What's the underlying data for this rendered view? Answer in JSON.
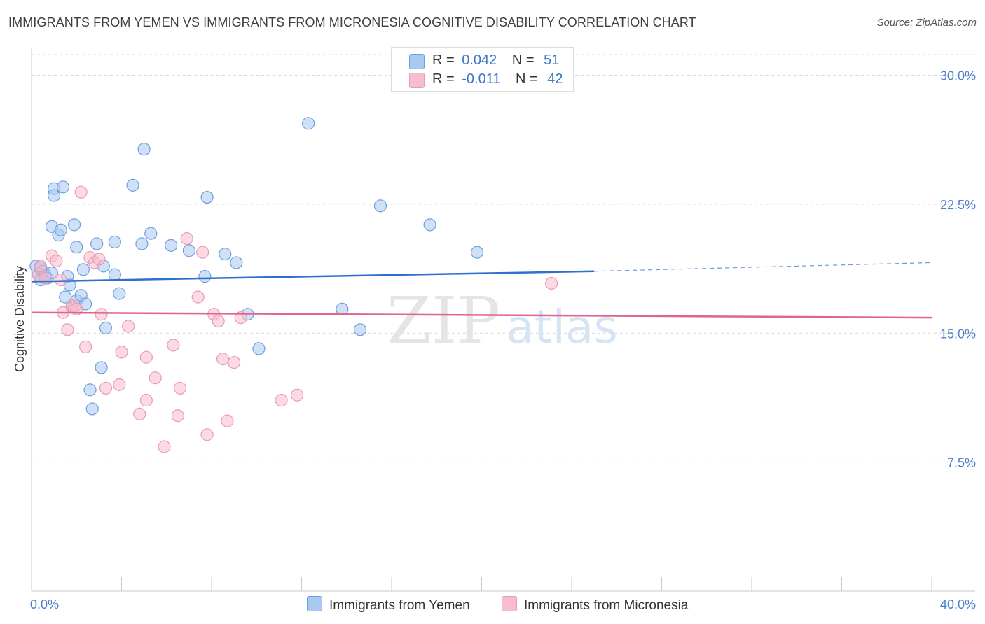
{
  "title": "IMMIGRANTS FROM YEMEN VS IMMIGRANTS FROM MICRONESIA COGNITIVE DISABILITY CORRELATION CHART",
  "source": "Source: ZipAtlas.com",
  "watermark": {
    "zip": "ZIP",
    "atlas": "atlas"
  },
  "legend": {
    "rows": [
      {
        "r_label": "R =",
        "r_value": "0.042",
        "n_label": "N =",
        "n_value": "51"
      },
      {
        "r_label": "R =",
        "r_value": "-0.011",
        "n_label": "N =",
        "n_value": "42"
      }
    ]
  },
  "bottom_legend": {
    "yemen": "Immigrants from Yemen",
    "micronesia": "Immigrants from Micronesia"
  },
  "colors": {
    "yemen_fill": "#a9c9f0",
    "yemen_stroke": "#6a9fe0",
    "yemen_line": "#2f6fcf",
    "micronesia_fill": "#f7bccd",
    "micronesia_stroke": "#eb9ab3",
    "micronesia_line": "#e0648c",
    "tick_text": "#4a7fcc"
  },
  "chart_data": {
    "type": "scatter",
    "title": "IMMIGRANTS FROM YEMEN VS IMMIGRANTS FROM MICRONESIA COGNITIVE DISABILITY CORRELATION CHART",
    "xlabel": "",
    "ylabel": "Cognitive Disability",
    "xlim": [
      0,
      40
    ],
    "ylim": [
      0,
      31.2
    ],
    "x_tick_labels": [
      "0.0%",
      "40.0%"
    ],
    "y_ticks": [
      7.5,
      15.0,
      22.5,
      30.0
    ],
    "y_tick_labels": [
      "7.5%",
      "15.0%",
      "22.5%",
      "30.0%"
    ],
    "grid": "horizontal dashed",
    "legend_position": "top-center",
    "series": [
      {
        "name": "Immigrants from Yemen",
        "points": [
          [
            0.2,
            18.9
          ],
          [
            0.3,
            18.4
          ],
          [
            0.4,
            18.1
          ],
          [
            0.4,
            18.8
          ],
          [
            0.5,
            18.6
          ],
          [
            0.6,
            18.4
          ],
          [
            0.7,
            18.2
          ],
          [
            0.9,
            21.2
          ],
          [
            0.9,
            18.5
          ],
          [
            1.0,
            23.4
          ],
          [
            1.0,
            23.0
          ],
          [
            1.2,
            20.7
          ],
          [
            1.3,
            21.0
          ],
          [
            1.4,
            23.5
          ],
          [
            1.5,
            17.1
          ],
          [
            1.6,
            18.3
          ],
          [
            1.7,
            17.8
          ],
          [
            1.8,
            16.5
          ],
          [
            1.9,
            21.3
          ],
          [
            2.0,
            20.0
          ],
          [
            2.0,
            16.9
          ],
          [
            2.2,
            17.2
          ],
          [
            2.3,
            18.7
          ],
          [
            2.4,
            16.7
          ],
          [
            2.6,
            11.7
          ],
          [
            2.7,
            10.6
          ],
          [
            2.9,
            20.2
          ],
          [
            3.1,
            13.0
          ],
          [
            3.2,
            18.9
          ],
          [
            3.3,
            15.3
          ],
          [
            3.7,
            18.4
          ],
          [
            3.7,
            20.3
          ],
          [
            3.9,
            17.3
          ],
          [
            4.5,
            23.6
          ],
          [
            4.9,
            20.2
          ],
          [
            5.0,
            25.7
          ],
          [
            5.3,
            20.8
          ],
          [
            6.2,
            20.1
          ],
          [
            7.0,
            19.8
          ],
          [
            7.8,
            22.9
          ],
          [
            7.7,
            18.3
          ],
          [
            8.6,
            19.6
          ],
          [
            9.1,
            19.1
          ],
          [
            9.6,
            16.1
          ],
          [
            10.1,
            14.1
          ],
          [
            12.3,
            27.2
          ],
          [
            13.8,
            16.4
          ],
          [
            14.6,
            15.2
          ],
          [
            15.5,
            22.4
          ],
          [
            17.7,
            21.3
          ],
          [
            19.8,
            19.7
          ]
        ]
      },
      {
        "name": "Immigrants from Micronesia",
        "points": [
          [
            0.3,
            18.4
          ],
          [
            0.4,
            18.9
          ],
          [
            0.6,
            18.2
          ],
          [
            0.9,
            19.5
          ],
          [
            1.1,
            19.2
          ],
          [
            1.3,
            18.1
          ],
          [
            1.4,
            16.2
          ],
          [
            1.6,
            15.2
          ],
          [
            1.8,
            16.6
          ],
          [
            1.9,
            16.5
          ],
          [
            2.0,
            16.4
          ],
          [
            2.2,
            23.2
          ],
          [
            2.4,
            14.2
          ],
          [
            2.6,
            19.4
          ],
          [
            2.8,
            19.1
          ],
          [
            3.0,
            19.3
          ],
          [
            3.1,
            16.1
          ],
          [
            3.3,
            11.8
          ],
          [
            3.9,
            12.0
          ],
          [
            4.0,
            13.9
          ],
          [
            4.3,
            15.4
          ],
          [
            4.8,
            10.3
          ],
          [
            5.1,
            13.6
          ],
          [
            5.1,
            11.1
          ],
          [
            5.5,
            12.4
          ],
          [
            5.9,
            8.4
          ],
          [
            6.3,
            14.3
          ],
          [
            6.5,
            10.2
          ],
          [
            6.6,
            11.8
          ],
          [
            6.9,
            20.5
          ],
          [
            7.4,
            17.1
          ],
          [
            7.6,
            19.7
          ],
          [
            7.8,
            9.1
          ],
          [
            8.1,
            16.1
          ],
          [
            8.3,
            15.7
          ],
          [
            8.5,
            13.5
          ],
          [
            8.7,
            9.9
          ],
          [
            9.0,
            13.3
          ],
          [
            9.3,
            15.9
          ],
          [
            11.1,
            11.1
          ],
          [
            11.8,
            11.4
          ],
          [
            23.1,
            17.9
          ]
        ]
      }
    ],
    "trend_lines": [
      {
        "series": "Immigrants from Yemen",
        "x": [
          0,
          25
        ],
        "y": [
          18.0,
          18.6
        ],
        "dashed_extension_x": [
          25,
          40
        ],
        "dashed_extension_y": [
          18.6,
          19.1
        ]
      },
      {
        "series": "Immigrants from Micronesia",
        "x": [
          0,
          40
        ],
        "y": [
          16.2,
          15.9
        ]
      }
    ]
  }
}
